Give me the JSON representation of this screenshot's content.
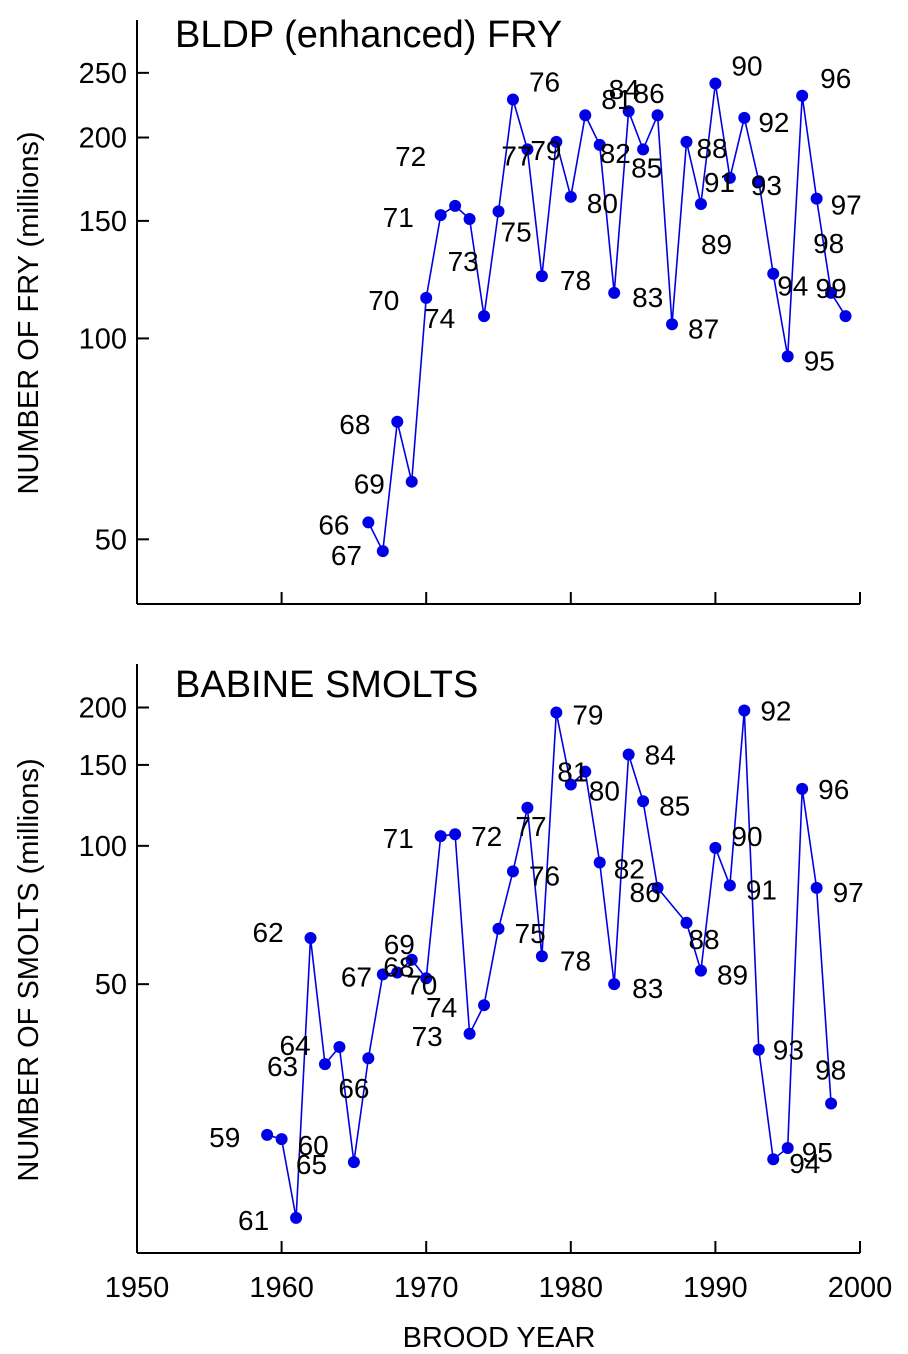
{
  "colors": {
    "series": "#0000e6",
    "axis": "#000000",
    "background": "#ffffff"
  },
  "chart_data": [
    {
      "type": "line",
      "title": "BLDP (enhanced) FRY",
      "xlabel": "",
      "ylabel": "NUMBER OF FRY (millions)",
      "yscale": "log",
      "xlim": [
        1950,
        2000
      ],
      "ylim": [
        40,
        280
      ],
      "xticks": [
        1950,
        1960,
        1970,
        1980,
        1990,
        2000
      ],
      "xtick_labels": [],
      "yticks": [
        50,
        100,
        150,
        200,
        250
      ],
      "ytick_labels": [
        "50",
        "100",
        "150",
        "200",
        "250"
      ],
      "grid": false,
      "points": [
        {
          "x": 1966,
          "y": 53,
          "label": "66"
        },
        {
          "x": 1967,
          "y": 48,
          "label": "67"
        },
        {
          "x": 1968,
          "y": 75,
          "label": "68"
        },
        {
          "x": 1969,
          "y": 61,
          "label": "69"
        },
        {
          "x": 1970,
          "y": 115,
          "label": "70"
        },
        {
          "x": 1971,
          "y": 153,
          "label": "71"
        },
        {
          "x": 1972,
          "y": 158,
          "label": "72"
        },
        {
          "x": 1973,
          "y": 151,
          "label": "73"
        },
        {
          "x": 1974,
          "y": 108,
          "label": "74"
        },
        {
          "x": 1975,
          "y": 155,
          "label": "75"
        },
        {
          "x": 1976,
          "y": 228,
          "label": "76"
        },
        {
          "x": 1977,
          "y": 192,
          "label": "77"
        },
        {
          "x": 1978,
          "y": 124,
          "label": "78"
        },
        {
          "x": 1979,
          "y": 197,
          "label": "79"
        },
        {
          "x": 1980,
          "y": 163,
          "label": "80"
        },
        {
          "x": 1981,
          "y": 216,
          "label": "81"
        },
        {
          "x": 1982,
          "y": 195,
          "label": "82"
        },
        {
          "x": 1983,
          "y": 117,
          "label": "83"
        },
        {
          "x": 1984,
          "y": 219,
          "label": "84"
        },
        {
          "x": 1985,
          "y": 192,
          "label": "85"
        },
        {
          "x": 1986,
          "y": 216,
          "label": "86"
        },
        {
          "x": 1987,
          "y": 105,
          "label": "87"
        },
        {
          "x": 1988,
          "y": 197,
          "label": "88"
        },
        {
          "x": 1989,
          "y": 159,
          "label": "89"
        },
        {
          "x": 1990,
          "y": 241,
          "label": "90"
        },
        {
          "x": 1991,
          "y": 174,
          "label": "91"
        },
        {
          "x": 1992,
          "y": 214,
          "label": "92"
        },
        {
          "x": 1993,
          "y": 172,
          "label": "93"
        },
        {
          "x": 1994,
          "y": 125,
          "label": "94"
        },
        {
          "x": 1995,
          "y": 94,
          "label": "95"
        },
        {
          "x": 1996,
          "y": 231,
          "label": "96"
        },
        {
          "x": 1997,
          "y": 162,
          "label": "97"
        },
        {
          "x": 1998,
          "y": 117,
          "label": "98"
        },
        {
          "x": 1999,
          "y": 108,
          "label": "99"
        }
      ]
    },
    {
      "type": "line",
      "title": "BABINE SMOLTS",
      "xlabel": "BROOD YEAR",
      "ylabel": "NUMBER OF SMOLTS (millions)",
      "yscale": "log",
      "xlim": [
        1950,
        2000
      ],
      "ylim": [
        13,
        225
      ],
      "xticks": [
        1950,
        1960,
        1970,
        1980,
        1990,
        2000
      ],
      "xtick_labels": [
        "1950",
        "1960",
        "1970",
        "1980",
        "1990",
        "2000"
      ],
      "yticks": [
        50,
        100,
        150,
        200
      ],
      "ytick_labels": [
        "50",
        "100",
        "150",
        "200"
      ],
      "grid": false,
      "points": [
        {
          "x": 1959,
          "y": 23.5,
          "label": "59"
        },
        {
          "x": 1960,
          "y": 23.0,
          "label": "60"
        },
        {
          "x": 1961,
          "y": 15.5,
          "label": "61"
        },
        {
          "x": 1962,
          "y": 63,
          "label": "62"
        },
        {
          "x": 1963,
          "y": 33.5,
          "label": "63"
        },
        {
          "x": 1964,
          "y": 36.5,
          "label": "64"
        },
        {
          "x": 1965,
          "y": 20.5,
          "label": "65"
        },
        {
          "x": 1966,
          "y": 34.5,
          "label": "66"
        },
        {
          "x": 1967,
          "y": 52.5,
          "label": "67"
        },
        {
          "x": 1968,
          "y": 53,
          "label": "68"
        },
        {
          "x": 1969,
          "y": 56.5,
          "label": "69"
        },
        {
          "x": 1970,
          "y": 51.5,
          "label": "70"
        },
        {
          "x": 1971,
          "y": 105,
          "label": "71"
        },
        {
          "x": 1972,
          "y": 106,
          "label": "72"
        },
        {
          "x": 1973,
          "y": 39,
          "label": "73"
        },
        {
          "x": 1974,
          "y": 45,
          "label": "74"
        },
        {
          "x": 1975,
          "y": 66,
          "label": "75"
        },
        {
          "x": 1976,
          "y": 88,
          "label": "76"
        },
        {
          "x": 1977,
          "y": 121,
          "label": "77"
        },
        {
          "x": 1978,
          "y": 57.5,
          "label": "78"
        },
        {
          "x": 1979,
          "y": 195,
          "label": "79"
        },
        {
          "x": 1980,
          "y": 136,
          "label": "80"
        },
        {
          "x": 1981,
          "y": 145,
          "label": "81"
        },
        {
          "x": 1982,
          "y": 92,
          "label": "82"
        },
        {
          "x": 1983,
          "y": 50,
          "label": "83"
        },
        {
          "x": 1984,
          "y": 158,
          "label": "84"
        },
        {
          "x": 1985,
          "y": 125,
          "label": "85"
        },
        {
          "x": 1986,
          "y": 81,
          "label": "86"
        },
        {
          "x": 1988,
          "y": 68,
          "label": "88"
        },
        {
          "x": 1989,
          "y": 53.5,
          "label": "89"
        },
        {
          "x": 1990,
          "y": 99,
          "label": "90"
        },
        {
          "x": 1991,
          "y": 82,
          "label": "91"
        },
        {
          "x": 1992,
          "y": 197,
          "label": "92"
        },
        {
          "x": 1993,
          "y": 36,
          "label": "93"
        },
        {
          "x": 1994,
          "y": 20.8,
          "label": "94"
        },
        {
          "x": 1995,
          "y": 22.0,
          "label": "95"
        },
        {
          "x": 1996,
          "y": 133,
          "label": "96"
        },
        {
          "x": 1997,
          "y": 81,
          "label": "97"
        },
        {
          "x": 1998,
          "y": 27.5,
          "label": "98"
        }
      ]
    }
  ]
}
